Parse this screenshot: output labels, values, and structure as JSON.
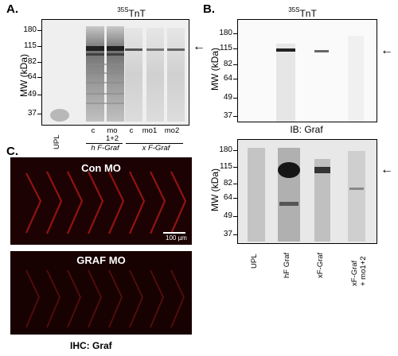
{
  "panel_a": {
    "letter": "A.",
    "title_sup": "35S",
    "title_main": "TnT",
    "ylabel": "MW (kDa)",
    "ticks": [
      "180",
      "115",
      "82",
      "64",
      "49",
      "37"
    ],
    "lanes": [
      "c",
      "mo\n1+2",
      "c",
      "mo1",
      "mo2"
    ],
    "upl": "UPL",
    "group_h": "h F-Graf",
    "group_x": "x F-Graf"
  },
  "panel_b": {
    "letter": "B.",
    "title_sup": "35S",
    "title_main": "TnT",
    "ylabel": "MW (kDa)",
    "ticks": [
      "180",
      "115",
      "82",
      "64",
      "49",
      "37"
    ],
    "ib_label": "IB: Graf",
    "ylabel2": "MW (kDa)",
    "ticks2": [
      "180",
      "115",
      "82",
      "64",
      "49",
      "37"
    ],
    "lanes": [
      "UPL",
      "hF Graf",
      "xF-Graf",
      "xF-Graf\n+ mo1+2"
    ]
  },
  "panel_c": {
    "letter": "C.",
    "top_label": "Con MO",
    "bottom_label": "GRAF MO",
    "scale_bar": "100 µm",
    "footer": "IHC: Graf"
  },
  "arrow_glyph": "←"
}
